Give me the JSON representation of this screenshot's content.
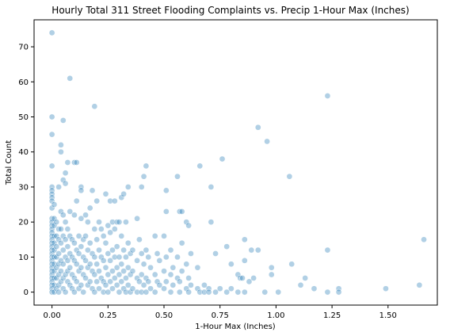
{
  "chart_data": {
    "type": "scatter",
    "title": "Hourly Total 311 Street Flooding Complaints vs. Precip 1-Hour Max (Inches)",
    "xlabel": "1-Hour Max (Inches)",
    "ylabel": "Total Count",
    "xlim": [
      -0.08,
      1.72
    ],
    "ylim": [
      -3.7,
      77.7
    ],
    "xticks": [
      0.0,
      0.25,
      0.5,
      0.75,
      1.0,
      1.25,
      1.5
    ],
    "xtick_labels": [
      "0.00",
      "0.25",
      "0.50",
      "0.75",
      "1.00",
      "1.25",
      "1.50"
    ],
    "yticks": [
      0,
      10,
      20,
      30,
      40,
      50,
      60,
      70
    ],
    "ytick_labels": [
      "0",
      "10",
      "20",
      "30",
      "40",
      "50",
      "60",
      "70"
    ],
    "grid": false,
    "color": "#1f77b4",
    "points": [
      [
        0.0,
        74
      ],
      [
        0.0,
        50
      ],
      [
        0.0,
        45
      ],
      [
        0.0,
        36
      ],
      [
        0.0,
        30
      ],
      [
        0.0,
        29
      ],
      [
        0.0,
        28
      ],
      [
        0.0,
        27
      ],
      [
        0.0,
        26
      ],
      [
        0.0,
        24
      ],
      [
        0.0,
        21
      ],
      [
        0.0,
        20
      ],
      [
        0.0,
        19
      ],
      [
        0.0,
        18
      ],
      [
        0.0,
        17
      ],
      [
        0.0,
        16
      ],
      [
        0.0,
        15
      ],
      [
        0.0,
        14
      ],
      [
        0.0,
        13
      ],
      [
        0.0,
        12
      ],
      [
        0.0,
        11
      ],
      [
        0.0,
        10
      ],
      [
        0.0,
        9
      ],
      [
        0.0,
        8
      ],
      [
        0.0,
        7
      ],
      [
        0.0,
        6
      ],
      [
        0.0,
        5
      ],
      [
        0.0,
        4
      ],
      [
        0.0,
        3
      ],
      [
        0.0,
        2
      ],
      [
        0.0,
        1
      ],
      [
        0.0,
        0
      ],
      [
        0.01,
        25
      ],
      [
        0.01,
        21
      ],
      [
        0.01,
        19
      ],
      [
        0.01,
        16
      ],
      [
        0.01,
        14
      ],
      [
        0.01,
        12
      ],
      [
        0.01,
        10
      ],
      [
        0.01,
        8
      ],
      [
        0.01,
        6
      ],
      [
        0.01,
        4
      ],
      [
        0.01,
        2
      ],
      [
        0.01,
        0
      ],
      [
        0.02,
        20
      ],
      [
        0.02,
        16
      ],
      [
        0.02,
        13
      ],
      [
        0.02,
        10
      ],
      [
        0.02,
        7
      ],
      [
        0.02,
        4
      ],
      [
        0.02,
        1
      ],
      [
        0.03,
        30
      ],
      [
        0.03,
        18
      ],
      [
        0.03,
        15
      ],
      [
        0.03,
        11
      ],
      [
        0.03,
        8
      ],
      [
        0.03,
        5
      ],
      [
        0.03,
        2
      ],
      [
        0.03,
        0
      ],
      [
        0.04,
        42
      ],
      [
        0.04,
        40
      ],
      [
        0.04,
        23
      ],
      [
        0.04,
        18
      ],
      [
        0.04,
        14
      ],
      [
        0.04,
        9
      ],
      [
        0.04,
        6
      ],
      [
        0.04,
        3
      ],
      [
        0.05,
        49
      ],
      [
        0.05,
        32
      ],
      [
        0.05,
        22
      ],
      [
        0.05,
        16
      ],
      [
        0.05,
        12
      ],
      [
        0.05,
        8
      ],
      [
        0.05,
        4
      ],
      [
        0.05,
        1
      ],
      [
        0.06,
        34
      ],
      [
        0.06,
        31
      ],
      [
        0.06,
        20
      ],
      [
        0.06,
        15
      ],
      [
        0.06,
        10
      ],
      [
        0.06,
        5
      ],
      [
        0.06,
        0
      ],
      [
        0.07,
        37
      ],
      [
        0.07,
        18
      ],
      [
        0.07,
        13
      ],
      [
        0.07,
        9
      ],
      [
        0.07,
        6
      ],
      [
        0.07,
        3
      ],
      [
        0.08,
        61
      ],
      [
        0.08,
        23
      ],
      [
        0.08,
        16
      ],
      [
        0.08,
        11
      ],
      [
        0.08,
        7
      ],
      [
        0.08,
        2
      ],
      [
        0.09,
        15
      ],
      [
        0.09,
        10
      ],
      [
        0.09,
        5
      ],
      [
        0.09,
        1
      ],
      [
        0.1,
        37
      ],
      [
        0.1,
        22
      ],
      [
        0.1,
        14
      ],
      [
        0.1,
        9
      ],
      [
        0.1,
        4
      ],
      [
        0.1,
        0
      ],
      [
        0.11,
        37
      ],
      [
        0.11,
        26
      ],
      [
        0.11,
        12
      ],
      [
        0.11,
        8
      ],
      [
        0.11,
        3
      ],
      [
        0.12,
        16
      ],
      [
        0.12,
        11
      ],
      [
        0.12,
        6
      ],
      [
        0.12,
        1
      ],
      [
        0.13,
        30
      ],
      [
        0.13,
        29
      ],
      [
        0.13,
        21
      ],
      [
        0.13,
        13
      ],
      [
        0.13,
        7
      ],
      [
        0.13,
        2
      ],
      [
        0.14,
        15
      ],
      [
        0.14,
        10
      ],
      [
        0.14,
        5
      ],
      [
        0.14,
        0
      ],
      [
        0.15,
        22
      ],
      [
        0.15,
        16
      ],
      [
        0.15,
        9
      ],
      [
        0.15,
        4
      ],
      [
        0.16,
        20
      ],
      [
        0.16,
        12
      ],
      [
        0.16,
        7
      ],
      [
        0.16,
        2
      ],
      [
        0.17,
        24
      ],
      [
        0.17,
        14
      ],
      [
        0.17,
        8
      ],
      [
        0.17,
        3
      ],
      [
        0.18,
        29
      ],
      [
        0.18,
        11
      ],
      [
        0.18,
        6
      ],
      [
        0.18,
        1
      ],
      [
        0.19,
        53
      ],
      [
        0.19,
        18
      ],
      [
        0.19,
        10
      ],
      [
        0.19,
        5
      ],
      [
        0.19,
        0
      ],
      [
        0.2,
        26
      ],
      [
        0.2,
        15
      ],
      [
        0.2,
        8
      ],
      [
        0.2,
        3
      ],
      [
        0.21,
        20
      ],
      [
        0.21,
        12
      ],
      [
        0.21,
        6
      ],
      [
        0.21,
        1
      ],
      [
        0.22,
        18
      ],
      [
        0.22,
        10
      ],
      [
        0.22,
        4
      ],
      [
        0.23,
        16
      ],
      [
        0.23,
        9
      ],
      [
        0.23,
        3
      ],
      [
        0.23,
        0
      ],
      [
        0.24,
        28
      ],
      [
        0.24,
        14
      ],
      [
        0.24,
        7
      ],
      [
        0.24,
        2
      ],
      [
        0.25,
        19
      ],
      [
        0.25,
        11
      ],
      [
        0.25,
        5
      ],
      [
        0.25,
        0
      ],
      [
        0.26,
        26
      ],
      [
        0.26,
        17
      ],
      [
        0.26,
        9
      ],
      [
        0.26,
        3
      ],
      [
        0.27,
        20
      ],
      [
        0.27,
        12
      ],
      [
        0.27,
        6
      ],
      [
        0.27,
        1
      ],
      [
        0.28,
        26
      ],
      [
        0.28,
        18
      ],
      [
        0.28,
        10
      ],
      [
        0.28,
        4
      ],
      [
        0.29,
        20
      ],
      [
        0.29,
        13
      ],
      [
        0.29,
        7
      ],
      [
        0.29,
        2
      ],
      [
        0.3,
        20
      ],
      [
        0.3,
        10
      ],
      [
        0.3,
        5
      ],
      [
        0.3,
        0
      ],
      [
        0.31,
        27
      ],
      [
        0.31,
        16
      ],
      [
        0.31,
        8
      ],
      [
        0.31,
        3
      ],
      [
        0.32,
        28
      ],
      [
        0.32,
        12
      ],
      [
        0.32,
        6
      ],
      [
        0.32,
        1
      ],
      [
        0.33,
        20
      ],
      [
        0.33,
        10
      ],
      [
        0.33,
        4
      ],
      [
        0.33,
        0
      ],
      [
        0.34,
        30
      ],
      [
        0.34,
        14
      ],
      [
        0.34,
        7
      ],
      [
        0.34,
        2
      ],
      [
        0.35,
        11
      ],
      [
        0.35,
        5
      ],
      [
        0.35,
        0
      ],
      [
        0.36,
        12
      ],
      [
        0.36,
        6
      ],
      [
        0.36,
        1
      ],
      [
        0.38,
        21
      ],
      [
        0.38,
        9
      ],
      [
        0.38,
        4
      ],
      [
        0.38,
        0
      ],
      [
        0.39,
        15
      ],
      [
        0.39,
        3
      ],
      [
        0.4,
        30
      ],
      [
        0.4,
        11
      ],
      [
        0.4,
        5
      ],
      [
        0.4,
        0
      ],
      [
        0.41,
        33
      ],
      [
        0.41,
        8
      ],
      [
        0.41,
        2
      ],
      [
        0.42,
        36
      ],
      [
        0.42,
        12
      ],
      [
        0.42,
        4
      ],
      [
        0.42,
        0
      ],
      [
        0.43,
        10
      ],
      [
        0.43,
        3
      ],
      [
        0.44,
        7
      ],
      [
        0.44,
        1
      ],
      [
        0.46,
        16
      ],
      [
        0.46,
        5
      ],
      [
        0.46,
        0
      ],
      [
        0.47,
        11
      ],
      [
        0.47,
        3
      ],
      [
        0.48,
        9
      ],
      [
        0.48,
        2
      ],
      [
        0.5,
        16
      ],
      [
        0.5,
        6
      ],
      [
        0.5,
        1
      ],
      [
        0.51,
        29
      ],
      [
        0.51,
        23
      ],
      [
        0.51,
        10
      ],
      [
        0.51,
        3
      ],
      [
        0.53,
        12
      ],
      [
        0.53,
        5
      ],
      [
        0.53,
        0
      ],
      [
        0.54,
        7
      ],
      [
        0.54,
        2
      ],
      [
        0.56,
        33
      ],
      [
        0.56,
        10
      ],
      [
        0.56,
        4
      ],
      [
        0.57,
        23
      ],
      [
        0.57,
        3
      ],
      [
        0.57,
        0
      ],
      [
        0.58,
        23
      ],
      [
        0.58,
        14
      ],
      [
        0.58,
        6
      ],
      [
        0.6,
        20
      ],
      [
        0.6,
        8
      ],
      [
        0.6,
        1
      ],
      [
        0.61,
        19
      ],
      [
        0.61,
        4
      ],
      [
        0.61,
        0
      ],
      [
        0.62,
        11
      ],
      [
        0.62,
        2
      ],
      [
        0.65,
        7
      ],
      [
        0.65,
        1
      ],
      [
        0.66,
        36
      ],
      [
        0.66,
        0
      ],
      [
        0.68,
        2
      ],
      [
        0.68,
        0
      ],
      [
        0.7,
        1
      ],
      [
        0.7,
        0
      ],
      [
        0.71,
        30
      ],
      [
        0.71,
        20
      ],
      [
        0.73,
        11
      ],
      [
        0.73,
        0
      ],
      [
        0.75,
        1
      ],
      [
        0.76,
        38
      ],
      [
        0.78,
        13
      ],
      [
        0.78,
        0
      ],
      [
        0.8,
        8
      ],
      [
        0.8,
        1
      ],
      [
        0.83,
        5
      ],
      [
        0.83,
        0
      ],
      [
        0.84,
        4
      ],
      [
        0.85,
        4
      ],
      [
        0.86,
        9
      ],
      [
        0.86,
        15
      ],
      [
        0.86,
        0
      ],
      [
        0.88,
        3
      ],
      [
        0.89,
        12
      ],
      [
        0.9,
        4
      ],
      [
        0.92,
        47
      ],
      [
        0.92,
        12
      ],
      [
        0.95,
        0
      ],
      [
        0.96,
        43
      ],
      [
        0.98,
        7
      ],
      [
        0.98,
        5
      ],
      [
        1.01,
        0
      ],
      [
        1.06,
        33
      ],
      [
        1.07,
        8
      ],
      [
        1.11,
        2
      ],
      [
        1.13,
        4
      ],
      [
        1.17,
        1
      ],
      [
        1.23,
        56
      ],
      [
        1.23,
        12
      ],
      [
        1.23,
        0
      ],
      [
        1.28,
        1
      ],
      [
        1.28,
        0
      ],
      [
        1.49,
        1
      ],
      [
        1.64,
        2
      ],
      [
        1.66,
        15
      ]
    ]
  }
}
